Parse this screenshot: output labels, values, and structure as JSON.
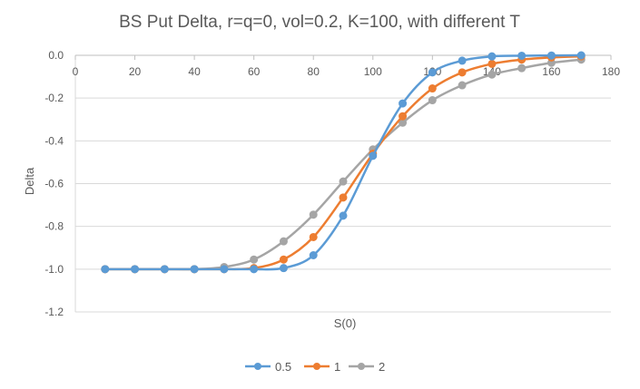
{
  "chart_data": {
    "type": "line",
    "title": "BS Put Delta, r=q=0, vol=0.2, K=100, with different T",
    "xlabel": "S(0)",
    "ylabel": "Delta",
    "xlim": [
      0,
      180
    ],
    "ylim": [
      -1.2,
      0.0
    ],
    "x_ticks": [
      "0",
      "20",
      "40",
      "60",
      "80",
      "100",
      "120",
      "140",
      "160",
      "180"
    ],
    "y_ticks": [
      "0.0",
      "-0.2",
      "-0.4",
      "-0.6",
      "-0.8",
      "-1.0",
      "-1.2"
    ],
    "grid": true,
    "legend_position": "bottom",
    "x": [
      10,
      20,
      30,
      40,
      50,
      60,
      70,
      80,
      90,
      100,
      110,
      120,
      130,
      140,
      150,
      160,
      170
    ],
    "series": [
      {
        "name": "0.5",
        "color": "#5b9bd5",
        "values": [
          -1.0,
          -1.0,
          -1.0,
          -1.0,
          -1.0,
          -1.0,
          -0.995,
          -0.935,
          -0.75,
          -0.47,
          -0.225,
          -0.08,
          -0.025,
          -0.005,
          -0.002,
          -0.001,
          0.0
        ]
      },
      {
        "name": "1",
        "color": "#ed7d31",
        "values": [
          -1.0,
          -1.0,
          -1.0,
          -1.0,
          -1.0,
          -0.995,
          -0.955,
          -0.85,
          -0.665,
          -0.46,
          -0.285,
          -0.155,
          -0.08,
          -0.04,
          -0.02,
          -0.01,
          -0.005
        ]
      },
      {
        "name": "2",
        "color": "#a5a5a5",
        "values": [
          -1.0,
          -1.0,
          -1.0,
          -1.0,
          -0.99,
          -0.955,
          -0.87,
          -0.745,
          -0.59,
          -0.44,
          -0.315,
          -0.21,
          -0.14,
          -0.09,
          -0.06,
          -0.035,
          -0.02
        ]
      }
    ]
  }
}
